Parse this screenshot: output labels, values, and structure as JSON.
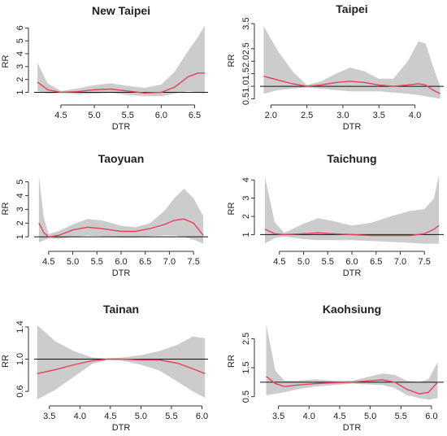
{
  "figure": {
    "panels": [
      {
        "title": "New Taipei",
        "xlabel": "DTR",
        "ylabel": "RR"
      },
      {
        "title": "Taipei",
        "xlabel": "DTR",
        "ylabel": "RR"
      },
      {
        "title": "Taoyuan",
        "xlabel": "DTR",
        "ylabel": "RR"
      },
      {
        "title": "Taichung",
        "xlabel": "DTR",
        "ylabel": "RR"
      },
      {
        "title": "Tainan",
        "xlabel": "DTR",
        "ylabel": "RR"
      },
      {
        "title": "Kaohsiung",
        "xlabel": "DTR",
        "ylabel": "RR"
      }
    ]
  },
  "colors": {
    "curve": "#e8405a",
    "band": "#cccccc",
    "reference_line": "#111111"
  },
  "chart_data": [
    {
      "type": "line",
      "title": "New Taipei",
      "xlabel": "DTR",
      "ylabel": "RR",
      "xlim": [
        4.1,
        6.7
      ],
      "ylim": [
        0.4,
        6.4
      ],
      "x_ticks": [
        "4.5",
        "5.0",
        "5.5",
        "6.0",
        "6.5"
      ],
      "y_ticks": [
        "1",
        "2",
        "3",
        "4",
        "5",
        "6"
      ],
      "reference": 1,
      "x": [
        4.15,
        4.3,
        4.5,
        4.75,
        5.0,
        5.25,
        5.5,
        5.75,
        6.0,
        6.2,
        6.4,
        6.55,
        6.65
      ],
      "rr": [
        1.8,
        1.2,
        1.0,
        1.05,
        1.2,
        1.25,
        1.1,
        0.95,
        1.0,
        1.4,
        2.2,
        2.5,
        2.5
      ],
      "upper": [
        3.3,
        1.7,
        1.1,
        1.3,
        1.55,
        1.7,
        1.5,
        1.35,
        1.6,
        2.6,
        4.2,
        5.3,
        6.2
      ],
      "lower": [
        1.1,
        0.9,
        0.95,
        0.85,
        0.9,
        0.95,
        0.8,
        0.7,
        0.7,
        0.9,
        1.1,
        1.0,
        0.9
      ]
    },
    {
      "type": "line",
      "title": "Taipei",
      "xlabel": "DTR",
      "ylabel": "RR",
      "xlim": [
        1.85,
        4.4
      ],
      "ylim": [
        0.45,
        3.6
      ],
      "x_ticks": [
        "2.0",
        "2.5",
        "3.0",
        "3.5",
        "4.0"
      ],
      "y_ticks": [
        "0.5",
        "1.0",
        "1.5",
        "2.0",
        "2.5",
        "3.5"
      ],
      "reference": 1,
      "x": [
        1.9,
        2.1,
        2.3,
        2.5,
        2.7,
        2.9,
        3.1,
        3.3,
        3.5,
        3.7,
        3.9,
        4.05,
        4.15,
        4.25,
        4.35
      ],
      "rr": [
        1.4,
        1.25,
        1.1,
        1.0,
        1.05,
        1.15,
        1.2,
        1.15,
        1.05,
        1.0,
        1.05,
        1.1,
        1.05,
        0.85,
        0.7
      ],
      "upper": [
        3.4,
        2.4,
        1.6,
        1.05,
        1.2,
        1.5,
        1.75,
        1.6,
        1.3,
        1.3,
        2.0,
        2.8,
        2.7,
        1.8,
        1.0
      ],
      "lower": [
        0.7,
        0.85,
        0.9,
        0.95,
        0.9,
        0.85,
        0.8,
        0.8,
        0.8,
        0.75,
        0.7,
        0.65,
        0.6,
        0.55,
        0.5
      ]
    },
    {
      "type": "line",
      "title": "Taoyuan",
      "xlabel": "DTR",
      "ylabel": "RR",
      "xlim": [
        4.2,
        7.8
      ],
      "ylim": [
        0.3,
        5.8
      ],
      "x_ticks": [
        "4.5",
        "5.0",
        "5.5",
        "6.0",
        "6.5",
        "7.0",
        "7.5"
      ],
      "y_ticks": [
        "1",
        "2",
        "3",
        "4",
        "5"
      ],
      "reference": 1,
      "x": [
        4.3,
        4.4,
        4.5,
        4.7,
        5.0,
        5.3,
        5.6,
        6.0,
        6.3,
        6.6,
        6.9,
        7.1,
        7.3,
        7.5,
        7.7
      ],
      "rr": [
        2.0,
        1.3,
        1.0,
        1.1,
        1.5,
        1.7,
        1.6,
        1.4,
        1.4,
        1.6,
        1.9,
        2.2,
        2.3,
        2.0,
        1.1
      ],
      "upper": [
        5.4,
        2.4,
        1.2,
        1.4,
        1.9,
        2.3,
        2.2,
        1.8,
        1.7,
        2.0,
        2.9,
        3.8,
        4.5,
        3.8,
        2.5
      ],
      "lower": [
        0.6,
        0.75,
        0.9,
        0.85,
        1.0,
        1.1,
        1.05,
        0.95,
        0.95,
        1.05,
        1.1,
        1.1,
        1.0,
        0.8,
        0.5
      ]
    },
    {
      "type": "line",
      "title": "Taichung",
      "xlabel": "DTR",
      "ylabel": "RR",
      "xlim": [
        4.1,
        7.9
      ],
      "ylim": [
        0.35,
        4.5
      ],
      "x_ticks": [
        "4.5",
        "5.0",
        "5.5",
        "6.0",
        "6.5",
        "7.0",
        "7.5"
      ],
      "y_ticks": [
        "1",
        "2",
        "3",
        "4"
      ],
      "reference": 1,
      "x": [
        4.2,
        4.4,
        4.6,
        5.0,
        5.3,
        5.6,
        6.0,
        6.4,
        6.8,
        7.2,
        7.5,
        7.7,
        7.8
      ],
      "rr": [
        1.3,
        1.05,
        1.0,
        1.05,
        1.1,
        1.05,
        1.0,
        0.95,
        0.95,
        0.95,
        1.05,
        1.3,
        1.5
      ],
      "upper": [
        4.2,
        1.7,
        1.1,
        1.6,
        1.9,
        1.75,
        1.5,
        1.65,
        2.0,
        2.3,
        2.4,
        3.0,
        4.3
      ],
      "lower": [
        0.5,
        0.8,
        0.9,
        0.75,
        0.7,
        0.7,
        0.7,
        0.65,
        0.6,
        0.55,
        0.5,
        0.5,
        0.5
      ]
    },
    {
      "type": "line",
      "title": "Tainan",
      "xlabel": "DTR",
      "ylabel": "RR",
      "xlim": [
        3.25,
        6.1
      ],
      "ylim": [
        0.48,
        1.47
      ],
      "x_ticks": [
        "3.5",
        "4.0",
        "4.5",
        "5.0",
        "5.5",
        "6.0"
      ],
      "y_ticks": [
        "0.6",
        "1.0",
        "1.4"
      ],
      "reference": 1,
      "x": [
        3.3,
        3.6,
        3.9,
        4.2,
        4.45,
        4.7,
        5.0,
        5.3,
        5.6,
        5.85,
        6.05
      ],
      "rr": [
        0.82,
        0.87,
        0.93,
        0.98,
        1.0,
        1.0,
        0.99,
        0.99,
        0.95,
        0.88,
        0.82
      ],
      "upper": [
        1.42,
        1.22,
        1.1,
        1.02,
        1.01,
        1.02,
        1.05,
        1.1,
        1.18,
        1.28,
        1.26
      ],
      "lower": [
        0.5,
        0.62,
        0.78,
        0.94,
        0.99,
        0.98,
        0.93,
        0.86,
        0.72,
        0.6,
        0.52
      ]
    },
    {
      "type": "line",
      "title": "Kaohsiung",
      "xlabel": "DTR",
      "ylabel": "RR",
      "xlim": [
        3.2,
        6.2
      ],
      "ylim": [
        0.35,
        3.1
      ],
      "x_ticks": [
        "3.5",
        "4.0",
        "4.5",
        "5.0",
        "5.5",
        "6.0"
      ],
      "y_ticks": [
        "0.5",
        "1.5",
        "2.5"
      ],
      "reference": 1,
      "x": [
        3.3,
        3.45,
        3.6,
        3.8,
        4.1,
        4.4,
        4.7,
        5.0,
        5.2,
        5.4,
        5.6,
        5.8,
        5.95,
        6.1
      ],
      "rr": [
        1.2,
        0.95,
        0.85,
        0.9,
        0.95,
        0.98,
        1.0,
        1.05,
        1.08,
        1.0,
        0.75,
        0.6,
        0.65,
        1.0
      ],
      "upper": [
        3.0,
        1.4,
        1.05,
        1.05,
        1.1,
        1.05,
        1.05,
        1.2,
        1.3,
        1.25,
        1.05,
        1.0,
        1.1,
        1.7
      ],
      "lower": [
        0.55,
        0.6,
        0.65,
        0.75,
        0.85,
        0.9,
        0.95,
        0.92,
        0.9,
        0.8,
        0.55,
        0.45,
        0.4,
        0.45
      ]
    }
  ]
}
